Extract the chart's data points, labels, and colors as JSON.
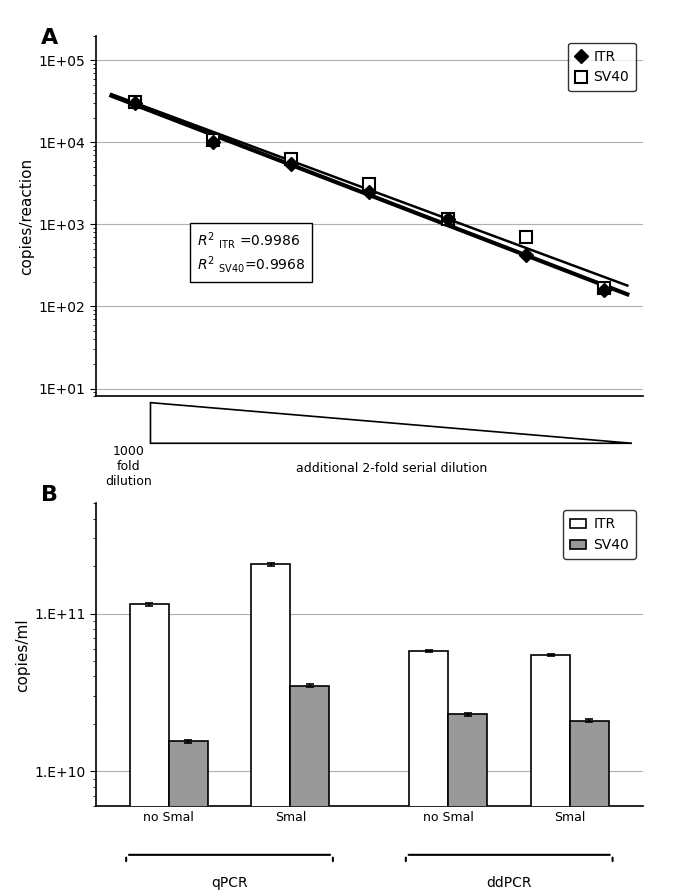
{
  "panel_A": {
    "ylabel": "copies/reaction",
    "yticks": [
      10,
      100,
      1000,
      10000,
      100000
    ],
    "ytick_labels": [
      "1E+01",
      "1E+02",
      "1E+03",
      "1E+04",
      "1E+05"
    ],
    "ylim": [
      8,
      200000
    ],
    "x_positions": [
      1,
      2,
      3,
      4,
      5,
      6,
      7
    ],
    "ITR_y": [
      30000,
      10200,
      5500,
      2500,
      1150,
      420,
      160
    ],
    "SV40_y": [
      31000,
      10800,
      6300,
      3100,
      1150,
      700,
      170
    ],
    "r2_ITR": "0.9986",
    "r2_SV40": "0.9968"
  },
  "panel_B": {
    "ylabel": "copies/ml",
    "ytick_labels": [
      "1.E+10",
      "1.E+11"
    ],
    "yticks": [
      10000000000.0,
      100000000000.0
    ],
    "ylim": [
      6000000000.0,
      500000000000.0
    ],
    "xtick_labels": [
      "no Smal",
      "Smal",
      "no Smal",
      "Smal"
    ],
    "group_labels": [
      "qPCR",
      "ddPCR"
    ],
    "ITR_values": [
      115000000000.0,
      205000000000.0,
      58000000000.0,
      55000000000.0
    ],
    "SV40_values": [
      15500000000.0,
      35000000000.0,
      23000000000.0,
      21000000000.0
    ],
    "ITR_errors": [
      2500000000.0,
      4000000000.0,
      800000000.0,
      800000000.0
    ],
    "SV40_errors": [
      400000000.0,
      800000000.0,
      600000000.0,
      500000000.0
    ],
    "ITR_color": "#ffffff",
    "SV40_color": "#999999",
    "bar_edgecolor": "#000000",
    "bar_width": 0.32
  },
  "figure_bg": "#ffffff"
}
